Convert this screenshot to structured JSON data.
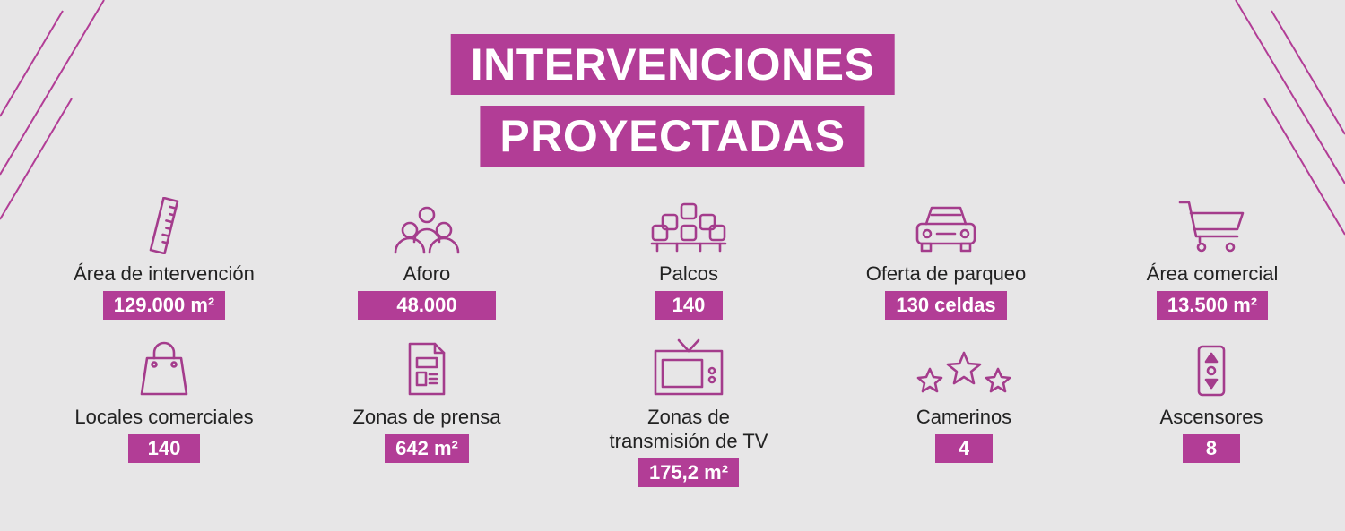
{
  "title": {
    "line1": "INTERVENCIONES",
    "line2": "PROYECTADAS"
  },
  "colors": {
    "accent": "#b23d96",
    "background": "#e7e6e7",
    "text": "#222222"
  },
  "row1": [
    {
      "icon": "ruler-icon",
      "label": "Área de intervención",
      "value": "129.000 m²"
    },
    {
      "icon": "people-icon",
      "label": "Aforo",
      "value": "48.000"
    },
    {
      "icon": "seats-icon",
      "label": "Palcos",
      "value": "140"
    },
    {
      "icon": "car-icon",
      "label": "Oferta de parqueo",
      "value": "130 celdas"
    },
    {
      "icon": "cart-icon",
      "label": "Área comercial",
      "value": "13.500 m²"
    }
  ],
  "row2": [
    {
      "icon": "shopping-bag-icon",
      "label": "Locales comerciales",
      "value": "140"
    },
    {
      "icon": "newspaper-icon",
      "label": "Zonas de prensa",
      "value": "642 m²"
    },
    {
      "icon": "tv-icon",
      "label": "Zonas de\ntransmisión de TV",
      "value": "175,2 m²"
    },
    {
      "icon": "stars-icon",
      "label": "Camerinos",
      "value": "4"
    },
    {
      "icon": "elevator-icon",
      "label": "Ascensores",
      "value": "8"
    }
  ]
}
